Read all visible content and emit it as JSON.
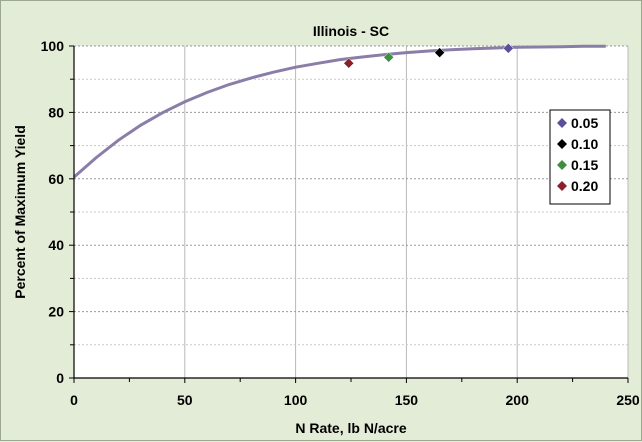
{
  "chart_data": {
    "type": "scatter",
    "title": "Illinois - SC",
    "xlabel": "N Rate, lb N/acre",
    "ylabel": "Percent of Maximum Yield",
    "xlim": [
      0,
      250
    ],
    "ylim": [
      0,
      100
    ],
    "x_ticks": [
      "0",
      "50",
      "100",
      "150",
      "200",
      "250"
    ],
    "y_ticks": [
      "0",
      "20",
      "40",
      "60",
      "80",
      "100"
    ],
    "grid": true,
    "legend_position": "right",
    "curve": {
      "x": [
        0,
        10,
        20,
        30,
        40,
        50,
        60,
        70,
        80,
        90,
        100,
        110,
        120,
        130,
        140,
        150,
        160,
        170,
        180,
        190,
        200,
        210,
        220,
        230,
        240
      ],
      "y": [
        60.5,
        66.4,
        71.6,
        76.1,
        79.9,
        83.2,
        86.0,
        88.4,
        90.4,
        92.1,
        93.6,
        94.8,
        95.9,
        96.7,
        97.4,
        98.0,
        98.5,
        98.9,
        99.2,
        99.4,
        99.6,
        99.7,
        99.8,
        99.9,
        99.9
      ],
      "color": "#8a7ea8"
    },
    "series": [
      {
        "name": "0.05",
        "x": [
          196
        ],
        "y": [
          99.3
        ],
        "color": "#5b4f9c"
      },
      {
        "name": "0.10",
        "x": [
          165
        ],
        "y": [
          98.0
        ],
        "color": "#000000"
      },
      {
        "name": "0.15",
        "x": [
          142
        ],
        "y": [
          96.6
        ],
        "color": "#3f8f3f"
      },
      {
        "name": "0.20",
        "x": [
          124
        ],
        "y": [
          94.8
        ],
        "color": "#8b1f2a"
      }
    ]
  }
}
